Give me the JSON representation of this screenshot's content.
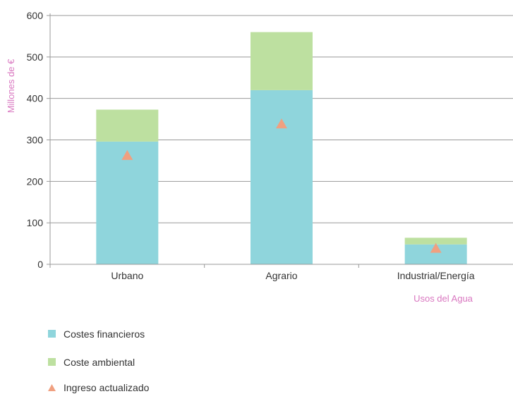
{
  "chart_data": {
    "type": "bar",
    "stacked": true,
    "categories": [
      "Urbano",
      "Agrario",
      "Industrial/Energía"
    ],
    "series": [
      {
        "name": "Costes financieros",
        "values": [
          296,
          420,
          48
        ],
        "color": "#8fd5dc"
      },
      {
        "name": "Coste ambiental",
        "values": [
          77,
          140,
          16
        ],
        "color": "#bde0a0"
      }
    ],
    "markers": {
      "name": "Ingreso actualizado",
      "values": [
        262,
        338,
        38
      ],
      "color": "#f0a080"
    },
    "ylabel": "Millones de €",
    "xlabel": "Usos del Agua",
    "ylim": [
      0,
      600
    ],
    "yticks": [
      0,
      100,
      200,
      300,
      400,
      500,
      600
    ],
    "grid": true,
    "axis_title_color": "#d977c0",
    "legend_position": "bottom-left"
  }
}
